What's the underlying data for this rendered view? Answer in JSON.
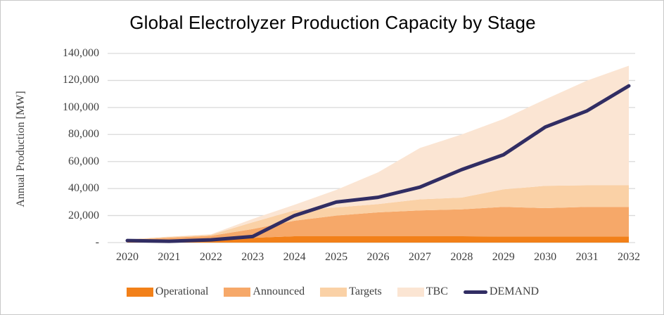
{
  "window": {
    "background": "#FFFFFF",
    "border_color": "#C8C8C8"
  },
  "chart_data": {
    "type": "area",
    "stacked": true,
    "title": "Global Electrolyzer Production Capacity by Stage",
    "xlabel": "",
    "ylabel": "Annual Production [MW]",
    "categories": [
      "2020",
      "2021",
      "2022",
      "2023",
      "2024",
      "2025",
      "2026",
      "2027",
      "2028",
      "2029",
      "2030",
      "2031",
      "2032"
    ],
    "series": [
      {
        "name": "Operational",
        "type": "area",
        "color": "#F28019",
        "values": [
          1200,
          1800,
          2400,
          3500,
          4700,
          4700,
          4700,
          4700,
          4700,
          4500,
          4500,
          4500,
          4500
        ]
      },
      {
        "name": "Announced",
        "type": "area",
        "color": "#F6A869",
        "values": [
          800,
          1800,
          2600,
          6500,
          11500,
          15300,
          17700,
          19100,
          19900,
          21900,
          21000,
          21900,
          21900
        ]
      },
      {
        "name": "Targets",
        "type": "area",
        "color": "#FAD1A6",
        "values": [
          300,
          600,
          800,
          5000,
          7700,
          6000,
          6100,
          8200,
          8700,
          13000,
          16500,
          16000,
          16000
        ]
      },
      {
        "name": "TBC",
        "type": "area",
        "color": "#FBE5D3",
        "values": [
          100,
          200,
          300,
          2500,
          4100,
          13000,
          23500,
          38000,
          46700,
          52100,
          64000,
          77500,
          88500
        ]
      },
      {
        "name": "DEMAND",
        "type": "line",
        "color": "#312D63",
        "values": [
          1500,
          1000,
          2000,
          4500,
          20000,
          30000,
          33500,
          41000,
          54000,
          65000,
          85500,
          97500,
          116000
        ]
      }
    ],
    "ylim": [
      0,
      140000
    ],
    "y_ticks": [
      0,
      20000,
      40000,
      60000,
      80000,
      100000,
      120000,
      140000
    ],
    "y_tick_labels": [
      "-",
      "20,000",
      "40,000",
      "60,000",
      "80,000",
      "100,000",
      "120,000",
      "140,000"
    ],
    "grid": true,
    "gridline_color": "#D9D9D9",
    "tick_text_color": "#404040",
    "legend_position": "bottom"
  }
}
